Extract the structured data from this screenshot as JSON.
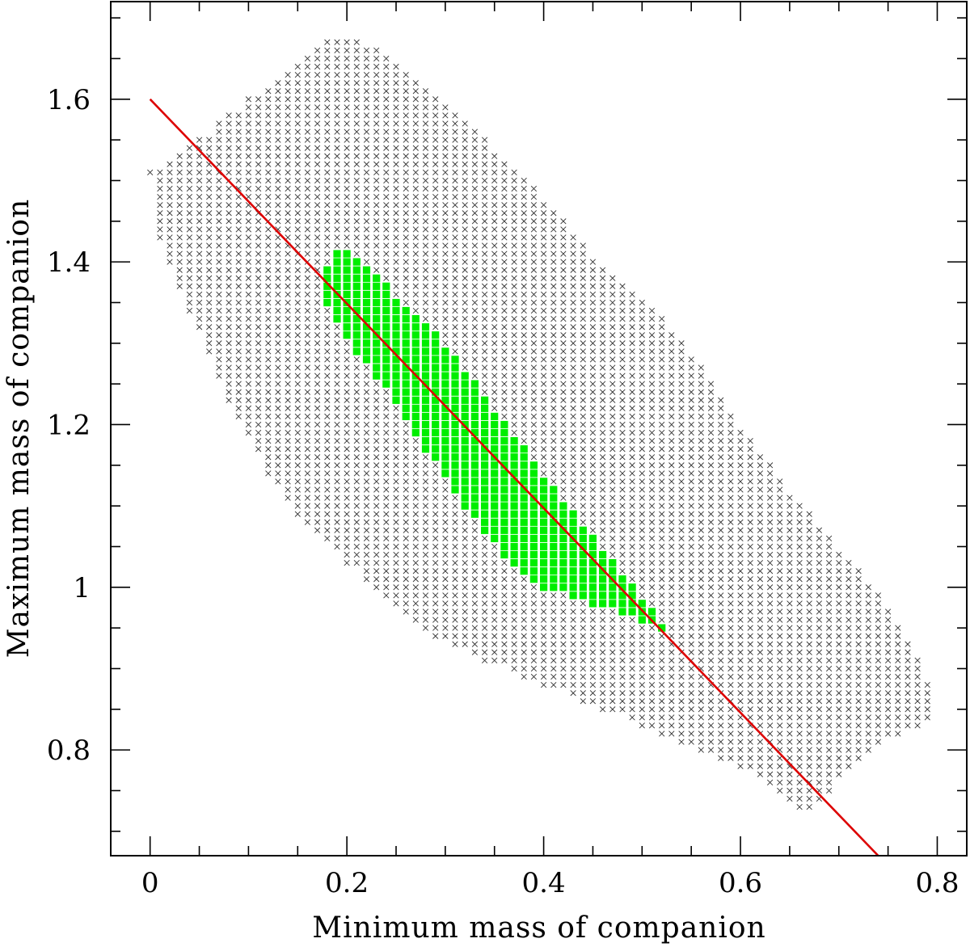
{
  "chart_data": {
    "type": "scatter",
    "xlabel": "Minimum mass of companion",
    "ylabel": "Maximum mass of companion",
    "xlim": [
      -0.04,
      0.83
    ],
    "ylim": [
      0.67,
      1.72
    ],
    "x_ticks": [
      0,
      0.2,
      0.4,
      0.6,
      0.8
    ],
    "x_tick_labels": [
      "0",
      "0.2",
      "0.4",
      "0.6",
      "0.8"
    ],
    "y_ticks": [
      0.8,
      1.0,
      1.2,
      1.4,
      1.6
    ],
    "y_tick_labels": [
      "0.8",
      "1",
      "1.2",
      "1.4",
      "1.6"
    ],
    "x_minor_step": 0.05,
    "y_minor_step": 0.05,
    "grid": false,
    "series": [
      {
        "marker": "x",
        "color": "#333333",
        "grid_step": 0.01,
        "region_polygon": [
          [
            0.0,
            1.51
          ],
          [
            0.05,
            1.55
          ],
          [
            0.1,
            1.6
          ],
          [
            0.15,
            1.65
          ],
          [
            0.19,
            1.68
          ],
          [
            0.24,
            1.66
          ],
          [
            0.3,
            1.6
          ],
          [
            0.35,
            1.54
          ],
          [
            0.4,
            1.48
          ],
          [
            0.45,
            1.41
          ],
          [
            0.5,
            1.36
          ],
          [
            0.55,
            1.29
          ],
          [
            0.6,
            1.2
          ],
          [
            0.65,
            1.12
          ],
          [
            0.7,
            1.05
          ],
          [
            0.75,
            0.98
          ],
          [
            0.79,
            0.89
          ],
          [
            0.8,
            0.84
          ],
          [
            0.75,
            0.81
          ],
          [
            0.7,
            0.76
          ],
          [
            0.67,
            0.72
          ],
          [
            0.63,
            0.76
          ],
          [
            0.58,
            0.79
          ],
          [
            0.52,
            0.82
          ],
          [
            0.46,
            0.85
          ],
          [
            0.4,
            0.88
          ],
          [
            0.34,
            0.91
          ],
          [
            0.29,
            0.94
          ],
          [
            0.25,
            0.98
          ],
          [
            0.2,
            1.03
          ],
          [
            0.15,
            1.09
          ],
          [
            0.12,
            1.14
          ],
          [
            0.08,
            1.23
          ],
          [
            0.04,
            1.34
          ],
          [
            0.01,
            1.43
          ]
        ]
      },
      {
        "marker": "square",
        "color": "#00ee00",
        "grid_step": 0.01,
        "region_polygon": [
          [
            0.18,
            1.4
          ],
          [
            0.2,
            1.42
          ],
          [
            0.25,
            1.36
          ],
          [
            0.3,
            1.3
          ],
          [
            0.35,
            1.22
          ],
          [
            0.4,
            1.14
          ],
          [
            0.44,
            1.08
          ],
          [
            0.48,
            1.02
          ],
          [
            0.52,
            0.96
          ],
          [
            0.53,
            0.94
          ],
          [
            0.48,
            0.97
          ],
          [
            0.45,
            0.98
          ],
          [
            0.4,
            1.0
          ],
          [
            0.36,
            1.04
          ],
          [
            0.32,
            1.1
          ],
          [
            0.28,
            1.17
          ],
          [
            0.25,
            1.23
          ],
          [
            0.21,
            1.29
          ],
          [
            0.18,
            1.35
          ]
        ]
      }
    ],
    "fit_line": {
      "color": "#dd0000",
      "points": [
        [
          0.0,
          1.6
        ],
        [
          0.74,
          0.67
        ]
      ]
    }
  }
}
